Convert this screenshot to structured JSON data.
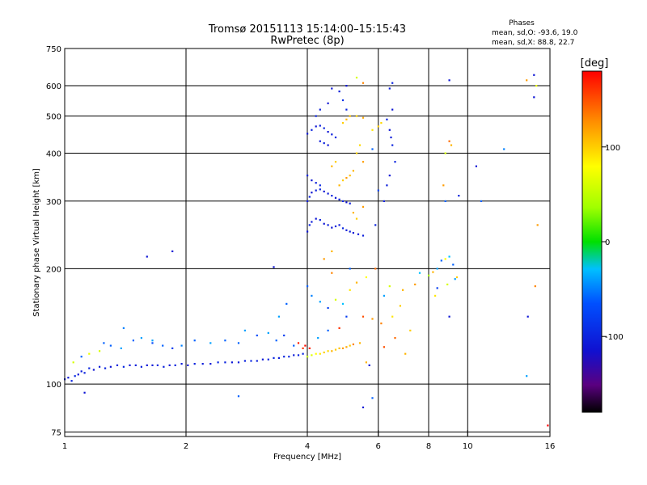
{
  "title_line1": "Tromsø 20151113 15:14:00–15:15:43",
  "title_line2": "RwPretec (8p)",
  "phases": {
    "heading": "Phases",
    "o_stats": "mean, sd,O: -93.6, 19.0",
    "x_stats": "mean, sd,X:  88.8, 22.7"
  },
  "colorbar": {
    "unit_label": "[deg]",
    "tick_labels": [
      "100",
      "0",
      "-100"
    ],
    "tick_values": [
      100,
      0,
      -100
    ],
    "range": [
      -180,
      180
    ]
  },
  "chart_data": {
    "type": "scatter",
    "xlabel": "Frequency [MHz]",
    "ylabel": "Stationary phase Virtual Height [km]",
    "xscale": "log",
    "yscale": "log",
    "xlim": [
      1,
      16
    ],
    "ylim": [
      73,
      750
    ],
    "x_ticks": [
      1,
      2,
      4,
      6,
      8,
      10,
      16
    ],
    "x_tick_labels": [
      "1",
      "2",
      "4",
      "6",
      "8",
      "10",
      "16"
    ],
    "y_ticks": [
      75,
      100,
      200,
      300,
      400,
      500,
      600,
      750
    ],
    "y_tick_labels": [
      "75",
      "100",
      "200",
      "300",
      "400",
      "500",
      "600",
      "750"
    ],
    "grid": true,
    "points": [
      [
        1.0,
        103,
        -105
      ],
      [
        1.02,
        104,
        -110
      ],
      [
        1.04,
        102,
        -100
      ],
      [
        1.06,
        105,
        -95
      ],
      [
        1.08,
        106,
        -110
      ],
      [
        1.1,
        108,
        -105
      ],
      [
        1.12,
        107,
        -100
      ],
      [
        1.15,
        110,
        -98
      ],
      [
        1.18,
        109,
        -112
      ],
      [
        1.22,
        111,
        -104
      ],
      [
        1.26,
        110,
        -100
      ],
      [
        1.3,
        111,
        -110
      ],
      [
        1.35,
        112,
        -102
      ],
      [
        1.4,
        111,
        -96
      ],
      [
        1.45,
        112,
        -108
      ],
      [
        1.5,
        112,
        -104
      ],
      [
        1.55,
        111,
        -100
      ],
      [
        1.6,
        112,
        -110
      ],
      [
        1.65,
        112,
        -106
      ],
      [
        1.7,
        112,
        -98
      ],
      [
        1.76,
        111,
        -102
      ],
      [
        1.82,
        112,
        -108
      ],
      [
        1.88,
        112,
        -100
      ],
      [
        1.95,
        113,
        -104
      ],
      [
        2.02,
        112,
        -110
      ],
      [
        2.1,
        113,
        -100
      ],
      [
        2.2,
        113,
        -104
      ],
      [
        2.3,
        113,
        -108
      ],
      [
        2.4,
        114,
        -96
      ],
      [
        2.5,
        114,
        -100
      ],
      [
        2.6,
        114,
        -108
      ],
      [
        2.7,
        114,
        -104
      ],
      [
        2.8,
        115,
        -100
      ],
      [
        2.9,
        115,
        -96
      ],
      [
        3.0,
        115,
        -102
      ],
      [
        3.1,
        116,
        -108
      ],
      [
        3.2,
        116,
        -100
      ],
      [
        3.3,
        117,
        -96
      ],
      [
        3.4,
        117,
        -104
      ],
      [
        3.5,
        118,
        -100
      ],
      [
        3.6,
        118,
        -98
      ],
      [
        3.7,
        119,
        -106
      ],
      [
        3.8,
        119,
        -100
      ],
      [
        3.9,
        120,
        -96
      ],
      [
        4.0,
        118,
        50
      ],
      [
        4.1,
        119,
        65
      ],
      [
        4.2,
        120,
        80
      ],
      [
        4.3,
        120,
        90
      ],
      [
        4.4,
        121,
        100
      ],
      [
        4.5,
        122,
        95
      ],
      [
        4.6,
        122,
        110
      ],
      [
        4.7,
        123,
        100
      ],
      [
        4.8,
        124,
        105
      ],
      [
        4.9,
        124,
        120
      ],
      [
        5.0,
        125,
        115
      ],
      [
        5.1,
        126,
        100
      ],
      [
        5.2,
        127,
        130
      ],
      [
        5.4,
        128,
        110
      ],
      [
        1.05,
        114,
        60
      ],
      [
        1.1,
        118,
        -60
      ],
      [
        1.15,
        120,
        70
      ],
      [
        1.22,
        122,
        60
      ],
      [
        1.3,
        126,
        -60
      ],
      [
        1.38,
        124,
        -40
      ],
      [
        1.48,
        130,
        -60
      ],
      [
        1.55,
        132,
        -40
      ],
      [
        1.65,
        128,
        -70
      ],
      [
        1.75,
        126,
        -60
      ],
      [
        1.85,
        124,
        -80
      ],
      [
        1.95,
        126,
        -50
      ],
      [
        2.1,
        130,
        -60
      ],
      [
        2.3,
        128,
        -40
      ],
      [
        2.5,
        130,
        -60
      ],
      [
        2.7,
        128,
        -60
      ],
      [
        2.8,
        138,
        -40
      ],
      [
        3.0,
        134,
        -70
      ],
      [
        3.2,
        136,
        -40
      ],
      [
        3.35,
        130,
        -60
      ],
      [
        3.5,
        134,
        -80
      ],
      [
        3.7,
        126,
        -60
      ],
      [
        3.8,
        128,
        170
      ],
      [
        3.9,
        124,
        160
      ],
      [
        3.95,
        126,
        175
      ],
      [
        4.05,
        124,
        170
      ],
      [
        4.25,
        132,
        -40
      ],
      [
        4.5,
        138,
        -60
      ],
      [
        4.8,
        140,
        160
      ],
      [
        5.0,
        150,
        -80
      ],
      [
        5.5,
        150,
        150
      ],
      [
        5.8,
        148,
        120
      ],
      [
        6.1,
        144,
        130
      ],
      [
        6.5,
        150,
        90
      ],
      [
        6.8,
        160,
        100
      ],
      [
        6.9,
        176,
        110
      ],
      [
        7.4,
        182,
        120
      ],
      [
        7.6,
        195,
        -30
      ],
      [
        8.0,
        192,
        40
      ],
      [
        8.2,
        196,
        110
      ],
      [
        8.4,
        200,
        -40
      ],
      [
        8.6,
        210,
        -60
      ],
      [
        8.8,
        212,
        80
      ],
      [
        9.0,
        215,
        -30
      ],
      [
        9.2,
        205,
        -60
      ],
      [
        9.4,
        190,
        100
      ],
      [
        4.0,
        180,
        -60
      ],
      [
        4.1,
        170,
        -50
      ],
      [
        4.3,
        164,
        -40
      ],
      [
        4.5,
        158,
        -80
      ],
      [
        4.7,
        166,
        60
      ],
      [
        4.9,
        162,
        -30
      ],
      [
        5.1,
        176,
        90
      ],
      [
        5.3,
        184,
        110
      ],
      [
        5.6,
        190,
        80
      ],
      [
        5.9,
        200,
        140
      ],
      [
        6.2,
        170,
        -40
      ],
      [
        6.4,
        180,
        60
      ],
      [
        4.0,
        250,
        -110
      ],
      [
        4.05,
        260,
        -100
      ],
      [
        4.1,
        265,
        -105
      ],
      [
        4.2,
        270,
        -110
      ],
      [
        4.3,
        268,
        -100
      ],
      [
        4.4,
        262,
        -110
      ],
      [
        4.5,
        260,
        -104
      ],
      [
        4.6,
        256,
        -112
      ],
      [
        4.7,
        258,
        -100
      ],
      [
        4.8,
        260,
        -110
      ],
      [
        4.9,
        255,
        -96
      ],
      [
        5.0,
        252,
        -108
      ],
      [
        5.1,
        250,
        -104
      ],
      [
        5.2,
        248,
        -110
      ],
      [
        5.35,
        246,
        -106
      ],
      [
        5.5,
        244,
        -104
      ],
      [
        4.0,
        300,
        -104
      ],
      [
        4.05,
        308,
        -100
      ],
      [
        4.1,
        316,
        -112
      ],
      [
        4.2,
        320,
        -104
      ],
      [
        4.3,
        322,
        -98
      ],
      [
        4.4,
        318,
        -110
      ],
      [
        4.5,
        314,
        -106
      ],
      [
        4.6,
        310,
        -100
      ],
      [
        4.7,
        306,
        -110
      ],
      [
        4.8,
        303,
        -104
      ],
      [
        4.9,
        300,
        -98
      ],
      [
        5.0,
        298,
        -112
      ],
      [
        5.1,
        296,
        -104
      ],
      [
        4.0,
        350,
        -100
      ],
      [
        4.1,
        340,
        -110
      ],
      [
        4.2,
        335,
        -104
      ],
      [
        4.3,
        330,
        -96
      ],
      [
        4.0,
        450,
        -108
      ],
      [
        4.1,
        460,
        -100
      ],
      [
        4.2,
        470,
        -110
      ],
      [
        4.3,
        472,
        -104
      ],
      [
        4.4,
        465,
        -100
      ],
      [
        4.5,
        455,
        -110
      ],
      [
        4.6,
        448,
        -104
      ],
      [
        4.7,
        440,
        -96
      ],
      [
        4.3,
        430,
        -108
      ],
      [
        4.4,
        425,
        -100
      ],
      [
        4.5,
        420,
        -110
      ],
      [
        4.2,
        500,
        -100
      ],
      [
        4.3,
        520,
        -104
      ],
      [
        4.5,
        540,
        -112
      ],
      [
        4.6,
        590,
        -108
      ],
      [
        4.8,
        580,
        -104
      ],
      [
        4.9,
        550,
        -90
      ],
      [
        5.0,
        520,
        -100
      ],
      [
        4.8,
        330,
        110
      ],
      [
        4.9,
        340,
        100
      ],
      [
        5.0,
        345,
        120
      ],
      [
        5.1,
        350,
        105
      ],
      [
        5.2,
        360,
        110
      ],
      [
        5.3,
        400,
        100
      ],
      [
        5.4,
        420,
        95
      ],
      [
        5.5,
        380,
        120
      ],
      [
        4.9,
        480,
        100
      ],
      [
        5.0,
        490,
        110
      ],
      [
        5.1,
        500,
        105
      ],
      [
        5.3,
        500,
        100
      ],
      [
        5.5,
        495,
        115
      ],
      [
        5.2,
        280,
        110
      ],
      [
        5.3,
        270,
        100
      ],
      [
        5.5,
        290,
        120
      ],
      [
        4.6,
        370,
        110
      ],
      [
        4.7,
        380,
        100
      ],
      [
        5.8,
        460,
        90
      ],
      [
        6.0,
        470,
        100
      ],
      [
        6.1,
        480,
        95
      ],
      [
        6.3,
        490,
        -100
      ],
      [
        6.4,
        460,
        -110
      ],
      [
        6.45,
        440,
        -104
      ],
      [
        6.5,
        420,
        -100
      ],
      [
        6.5,
        520,
        -110
      ],
      [
        6.4,
        590,
        -104
      ],
      [
        6.5,
        610,
        -100
      ],
      [
        6.4,
        350,
        -110
      ],
      [
        6.3,
        330,
        -104
      ],
      [
        6.2,
        300,
        -100
      ],
      [
        6.6,
        380,
        -100
      ],
      [
        5.8,
        410,
        -60
      ],
      [
        6.0,
        320,
        -80
      ],
      [
        5.9,
        260,
        -100
      ],
      [
        5.0,
        600,
        -110
      ],
      [
        5.3,
        630,
        60
      ],
      [
        5.5,
        610,
        130
      ],
      [
        9.0,
        620,
        -110
      ],
      [
        9.0,
        430,
        140
      ],
      [
        9.1,
        420,
        110
      ],
      [
        8.8,
        400,
        60
      ],
      [
        8.8,
        300,
        -60
      ],
      [
        8.7,
        330,
        120
      ],
      [
        9.5,
        310,
        -100
      ],
      [
        10.5,
        370,
        -110
      ],
      [
        10.8,
        300,
        -60
      ],
      [
        12.3,
        410,
        -50
      ],
      [
        14.0,
        620,
        120
      ],
      [
        14.6,
        640,
        -110
      ],
      [
        14.8,
        600,
        70
      ],
      [
        14.6,
        560,
        -110
      ],
      [
        14.9,
        260,
        120
      ],
      [
        14.7,
        180,
        130
      ],
      [
        14.1,
        150,
        -110
      ],
      [
        14.0,
        105,
        -40
      ],
      [
        15.8,
        78,
        180
      ],
      [
        5.5,
        87,
        -110
      ],
      [
        5.8,
        92,
        -60
      ],
      [
        2.7,
        93,
        -60
      ],
      [
        1.12,
        95,
        -110
      ],
      [
        1.6,
        215,
        -110
      ],
      [
        1.85,
        222,
        -110
      ],
      [
        3.3,
        202,
        -110
      ],
      [
        3.4,
        150,
        -40
      ],
      [
        3.55,
        162,
        -60
      ],
      [
        1.65,
        130,
        -40
      ],
      [
        1.4,
        140,
        -50
      ],
      [
        1.25,
        128,
        -60
      ],
      [
        7.0,
        120,
        110
      ],
      [
        7.2,
        138,
        100
      ],
      [
        6.6,
        132,
        140
      ],
      [
        5.6,
        114,
        110
      ],
      [
        5.7,
        112,
        -110
      ],
      [
        6.2,
        125,
        150
      ],
      [
        4.4,
        212,
        120
      ],
      [
        4.6,
        222,
        110
      ],
      [
        4.6,
        195,
        130
      ],
      [
        5.1,
        200,
        -60
      ],
      [
        8.3,
        170,
        90
      ],
      [
        8.4,
        178,
        -80
      ],
      [
        8.9,
        182,
        60
      ],
      [
        9.3,
        188,
        -40
      ],
      [
        9.0,
        150,
        -110
      ]
    ]
  }
}
